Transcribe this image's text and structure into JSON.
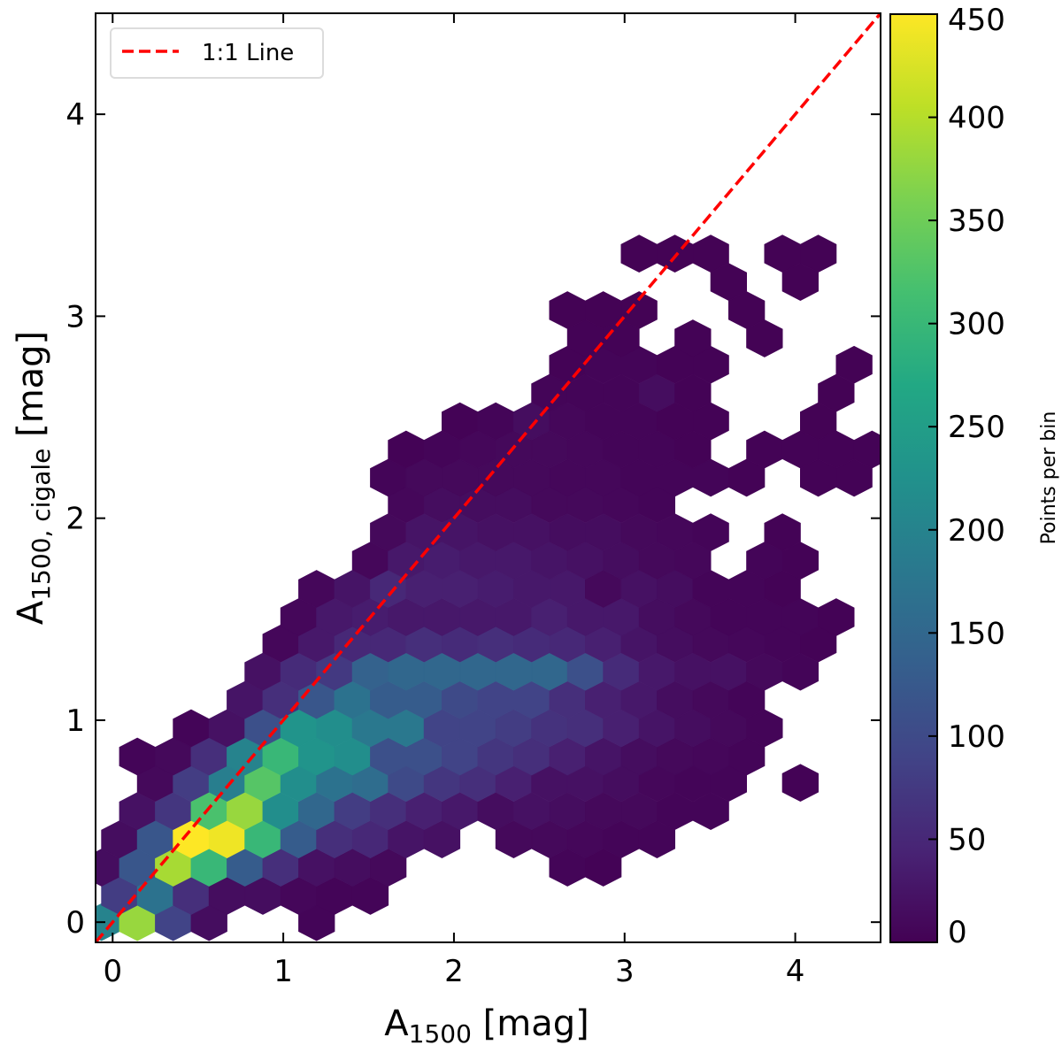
{
  "chart_data": {
    "type": "hexbin",
    "xlim": [
      -0.1,
      4.5
    ],
    "ylim": [
      -0.1,
      4.5
    ],
    "xticks": [
      0,
      1,
      2,
      3,
      4
    ],
    "yticks": [
      0,
      1,
      2,
      3,
      4
    ],
    "xlabel": {
      "main": "A",
      "sub": "1500",
      "suffix": " [mag]"
    },
    "ylabel": {
      "main": "A",
      "sub": "1500, cigale",
      "suffix": " [mag]"
    },
    "grid": false,
    "colorbar": {
      "label": "Points per bin",
      "range": [
        0,
        450
      ],
      "ticks": [
        0,
        50,
        100,
        150,
        200,
        250,
        300,
        350,
        400,
        450
      ],
      "colormap": "viridis",
      "stops": [
        "#440154",
        "#482475",
        "#414487",
        "#355f8d",
        "#2a788e",
        "#21918c",
        "#22a884",
        "#44bf70",
        "#7ad151",
        "#bddf26",
        "#fde725"
      ]
    },
    "legend": {
      "placement": "top-left",
      "entries": [
        {
          "label": "1:1 Line",
          "color": "#ff0000",
          "style": "dashed"
        }
      ]
    },
    "reference_line": {
      "label": "1:1 Line",
      "from": [
        -0.1,
        -0.1
      ],
      "to": [
        4.5,
        4.5
      ],
      "color": "#ff0000"
    },
    "hex_dx": 0.21,
    "rows": [
      {
        "y": 0.0,
        "x0": -0.065,
        "counts": [
          200,
          380,
          90,
          15,
          0,
          0,
          5
        ]
      },
      {
        "y": 0.13,
        "x0": 0.04,
        "counts": [
          80,
          170,
          60,
          15,
          15,
          8,
          5,
          5
        ]
      },
      {
        "y": 0.27,
        "x0": -0.065,
        "counts": [
          15,
          120,
          390,
          300,
          130,
          60,
          20,
          15,
          10,
          0,
          0,
          0,
          0,
          5,
          3
        ]
      },
      {
        "y": 0.41,
        "x0": 0.04,
        "counts": [
          15,
          120,
          450,
          440,
          300,
          130,
          60,
          50,
          25,
          20,
          0,
          10,
          10,
          8,
          5,
          5
        ]
      },
      {
        "y": 0.55,
        "x0": 0.145,
        "counts": [
          20,
          70,
          320,
          380,
          220,
          150,
          80,
          60,
          40,
          30,
          15,
          20,
          15,
          10,
          10,
          5,
          5
        ]
      },
      {
        "y": 0.69,
        "x0": 0.25,
        "counts": [
          10,
          80,
          190,
          330,
          220,
          170,
          160,
          100,
          70,
          60,
          40,
          20,
          20,
          15,
          8,
          5,
          5,
          0,
          3
        ]
      },
      {
        "y": 0.82,
        "x0": 0.145,
        "counts": [
          5,
          10,
          60,
          200,
          300,
          230,
          220,
          110,
          110,
          90,
          70,
          60,
          40,
          25,
          15,
          10,
          8,
          5
        ]
      },
      {
        "y": 0.96,
        "x0": 0.46,
        "counts": [
          5,
          20,
          110,
          230,
          220,
          180,
          180,
          90,
          90,
          80,
          65,
          60,
          40,
          25,
          15,
          10,
          5
        ]
      },
      {
        "y": 1.1,
        "x0": 0.775,
        "counts": [
          25,
          60,
          120,
          170,
          130,
          130,
          100,
          90,
          90,
          60,
          40,
          30,
          15,
          10,
          5
        ]
      },
      {
        "y": 1.24,
        "x0": 0.88,
        "counts": [
          20,
          55,
          75,
          140,
          150,
          150,
          150,
          150,
          150,
          110,
          55,
          30,
          20,
          20,
          10,
          5
        ]
      },
      {
        "y": 1.38,
        "x0": 0.985,
        "counts": [
          8,
          30,
          50,
          50,
          60,
          55,
          60,
          55,
          50,
          40,
          25,
          15,
          10,
          8,
          5,
          3
        ]
      },
      {
        "y": 1.51,
        "x0": 1.09,
        "counts": [
          8,
          30,
          35,
          30,
          30,
          30,
          30,
          40,
          30,
          30,
          15,
          10,
          5,
          5,
          5,
          3
        ]
      },
      {
        "y": 1.65,
        "x0": 1.195,
        "counts": [
          8,
          25,
          50,
          40,
          40,
          35,
          30,
          30,
          10,
          20,
          15,
          5,
          5,
          3
        ]
      },
      {
        "y": 1.79,
        "x0": 1.51,
        "counts": [
          8,
          30,
          35,
          30,
          30,
          25,
          20,
          15,
          10,
          8,
          0,
          5,
          3
        ]
      },
      {
        "y": 1.93,
        "x0": 1.615,
        "counts": [
          10,
          25,
          25,
          20,
          20,
          15,
          15,
          10,
          8,
          5,
          0,
          3
        ]
      },
      {
        "y": 2.07,
        "x0": 1.72,
        "counts": [
          8,
          15,
          15,
          15,
          10,
          10,
          8,
          5
        ]
      },
      {
        "y": 2.2,
        "x0": 1.615,
        "counts": [
          5,
          10,
          10,
          10,
          10,
          8,
          8,
          5,
          5,
          5,
          3,
          0,
          3,
          3
        ]
      },
      {
        "y": 2.34,
        "x0": 1.72,
        "counts": [
          3,
          5,
          8,
          10,
          10,
          8,
          5,
          5,
          3,
          0,
          3,
          3,
          3,
          3
        ]
      },
      {
        "y": 2.48,
        "x0": 2.035,
        "counts": [
          3,
          5,
          15,
          8,
          5,
          5,
          3,
          3,
          0,
          0,
          2
        ]
      },
      {
        "y": 2.62,
        "x0": 2.56,
        "counts": [
          5,
          5,
          5,
          15,
          3,
          0,
          0,
          0,
          2
        ]
      },
      {
        "y": 2.76,
        "x0": 2.665,
        "counts": [
          3,
          5,
          5,
          3,
          3,
          0,
          0,
          0,
          2
        ]
      },
      {
        "y": 2.89,
        "x0": 2.77,
        "counts": [
          3,
          3,
          0,
          3,
          0,
          2
        ]
      },
      {
        "y": 3.03,
        "x0": 2.665,
        "counts": [
          2,
          2,
          2,
          0,
          0,
          2
        ]
      },
      {
        "y": 3.17,
        "x0": 3.61,
        "counts": [
          2,
          0,
          2
        ]
      },
      {
        "y": 3.31,
        "x0": 3.085,
        "counts": [
          2,
          2,
          2,
          0,
          2,
          2
        ]
      }
    ]
  }
}
